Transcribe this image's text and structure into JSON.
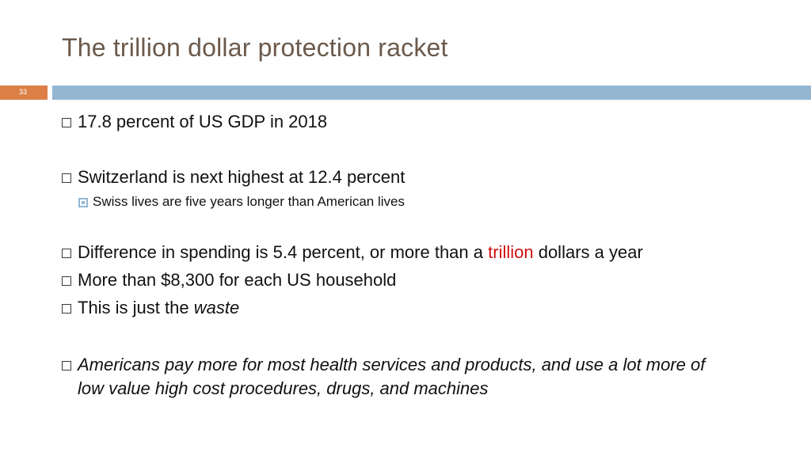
{
  "slide": {
    "title": "The trillion dollar protection racket",
    "number": "33"
  },
  "bullets": {
    "b1": "17.8 percent of US GDP in 2018",
    "b2": "Switzerland is next highest at 12.4 percent",
    "b2_sub": "Swiss lives are five years longer than American lives",
    "b3_pre": "Difference in spending is 5.4 percent, or more than a ",
    "b3_highlight": "trillion",
    "b3_post": " dollars a year",
    "b4": "More than $8,300 for each US household",
    "b5_pre": "This is just the ",
    "b5_em": "waste",
    "b6_line1": "Americans pay more for most health services and products, and use a lot more of",
    "b6_line2": "low value high cost procedures, drugs, and machines"
  },
  "colors": {
    "title": "#6b5a4c",
    "accent_orange": "#dd8047",
    "accent_blue": "#94b6d2",
    "highlight_red": "#d01010"
  }
}
